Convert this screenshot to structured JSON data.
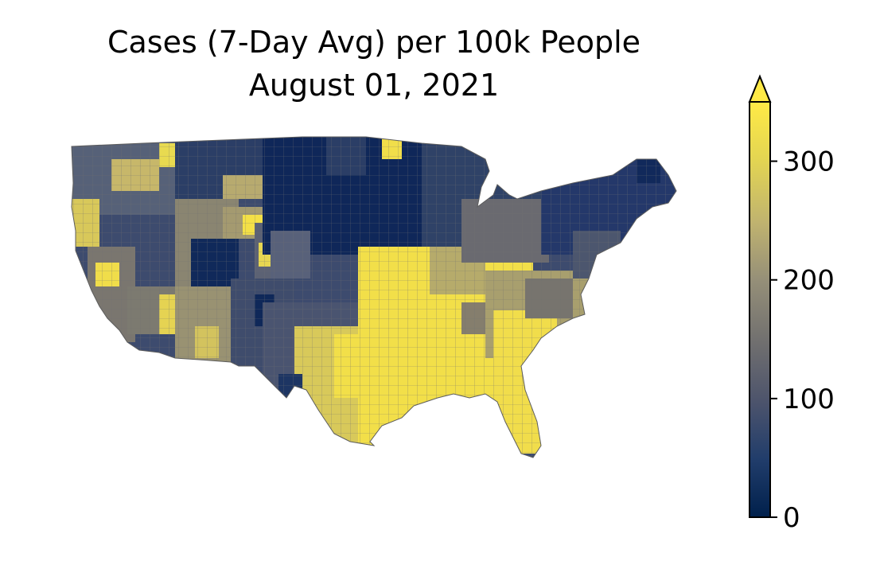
{
  "title": {
    "line1": "Cases (7-Day Avg) per 100k People",
    "line2": "August 01, 2021"
  },
  "colorbar": {
    "colormap": "cividis",
    "vmin": 0,
    "vmax": 350,
    "extend": "max",
    "ticks": [
      {
        "value": 0,
        "label": "0"
      },
      {
        "value": 100,
        "label": "100"
      },
      {
        "value": 200,
        "label": "200"
      },
      {
        "value": 300,
        "label": "300"
      }
    ],
    "colors": [
      "#00204c",
      "#213d6b",
      "#4d546c",
      "#706f6f",
      "#958f78",
      "#c0b36f",
      "#e3d552",
      "#ffea46"
    ]
  },
  "map": {
    "region": "Contiguous United States",
    "unit": "counties",
    "regional_pattern": [
      {
        "region": "Florida, Louisiana, Mississippi, Alabama, Arkansas, southern Missouri, eastern Texas",
        "level": "high (>300)"
      },
      {
        "region": "Great Plains (Nebraska, Kansas, Dakotas, Iowa)",
        "level": "low (<50)"
      },
      {
        "region": "Northeast, Great Lakes",
        "level": "low to moderate (50-150)"
      },
      {
        "region": "Mountain West and West Coast",
        "level": "mixed (50-350)"
      }
    ]
  }
}
